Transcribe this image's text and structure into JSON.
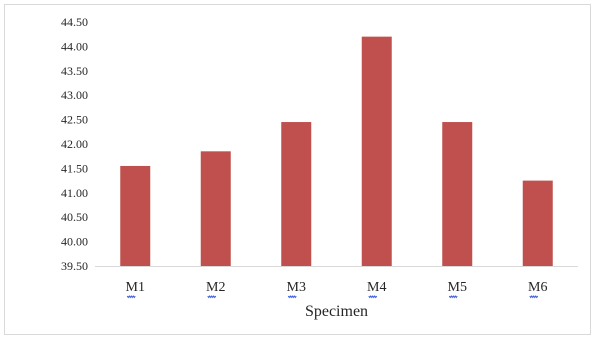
{
  "chart_data": {
    "type": "bar",
    "title": "",
    "xlabel": "Specimen",
    "ylabel": "",
    "categories": [
      "M1",
      "M2",
      "M3",
      "M4",
      "M5",
      "M6"
    ],
    "values": [
      41.55,
      41.85,
      42.45,
      44.2,
      42.45,
      41.25
    ],
    "ylim": [
      39.5,
      44.5
    ],
    "yticks": [
      "39.50",
      "40.00",
      "40.50",
      "41.00",
      "41.50",
      "42.00",
      "42.50",
      "43.00",
      "43.50",
      "44.00",
      "44.50"
    ],
    "bar_color": "#c0504d",
    "grid": false,
    "legend": "none"
  }
}
